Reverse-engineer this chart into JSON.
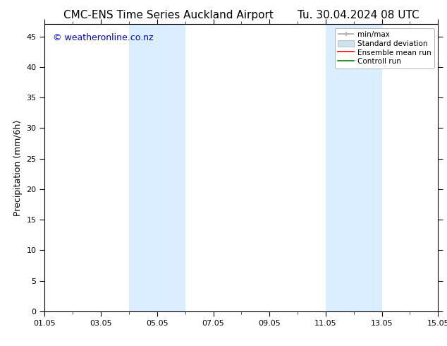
{
  "title_left": "CMC-ENS Time Series Auckland Airport",
  "title_right": "Tu. 30.04.2024 08 UTC",
  "ylabel": "Precipitation (mm/6h)",
  "watermark": "© weatheronline.co.nz",
  "watermark_color": "#0000cc",
  "ylim": [
    0,
    47
  ],
  "yticks": [
    0,
    5,
    10,
    15,
    20,
    25,
    30,
    35,
    40,
    45
  ],
  "xtick_labels": [
    "01.05",
    "03.05",
    "05.05",
    "07.05",
    "09.05",
    "11.05",
    "13.05",
    "15.05"
  ],
  "xtick_positions": [
    0,
    2,
    4,
    6,
    8,
    10,
    12,
    14
  ],
  "xlim": [
    0,
    14
  ],
  "bg_color": "#ffffff",
  "plot_bg_color": "#ffffff",
  "shaded_bands": [
    {
      "xstart": 3.0,
      "xend": 4.0,
      "color": "#daeeff"
    },
    {
      "xstart": 4.0,
      "xend": 5.0,
      "color": "#daeeff"
    },
    {
      "xstart": 10.0,
      "xend": 11.0,
      "color": "#daeeff"
    },
    {
      "xstart": 11.0,
      "xend": 12.0,
      "color": "#daeeff"
    }
  ],
  "minmax_color": "#aaaaaa",
  "std_color": "#cce4f0",
  "ensemble_color": "#ff0000",
  "control_color": "#008800",
  "title_fontsize": 11,
  "axis_label_fontsize": 9,
  "tick_fontsize": 8,
  "watermark_fontsize": 9,
  "legend_fontsize": 7.5,
  "border_color": "#000000"
}
